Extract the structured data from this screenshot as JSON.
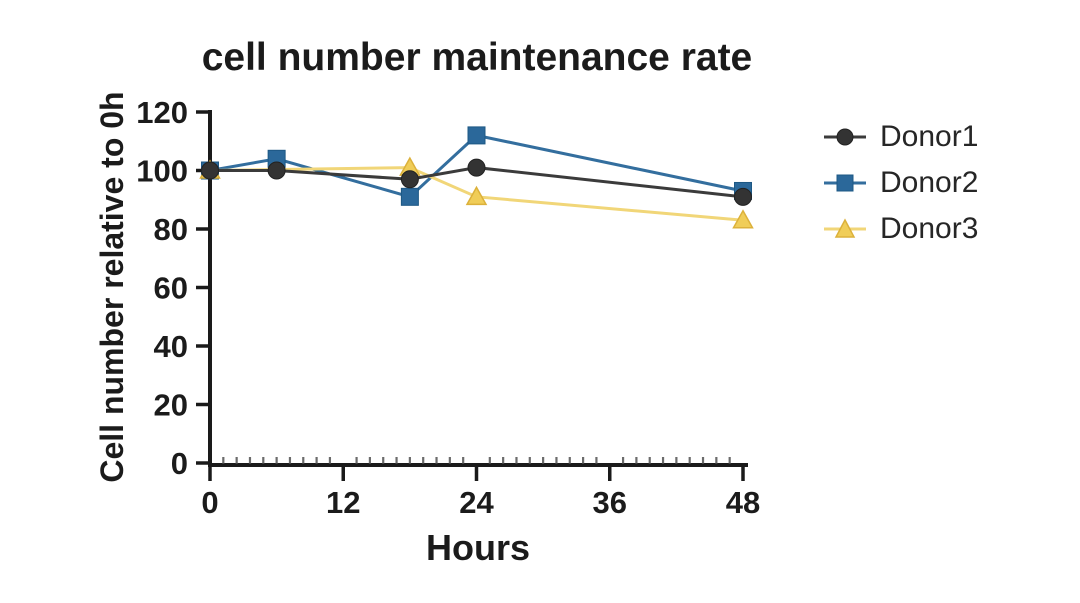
{
  "chart_data": {
    "type": "line",
    "title": "cell number maintenance rate",
    "xlabel": "Hours",
    "ylabel": "Cell number relative to 0h",
    "xlim": [
      0,
      48
    ],
    "ylim": [
      0,
      120
    ],
    "x_ticks": [
      0,
      12,
      24,
      36,
      48
    ],
    "y_ticks": [
      0,
      20,
      40,
      60,
      80,
      100,
      120
    ],
    "x_minor_tick_step": 1.2,
    "grid": false,
    "legend_position": "right-outside",
    "axis_color": "#1a1a1a",
    "text_color": "#1b1b1b",
    "minor_tick_color": "#6b6b6b",
    "series": [
      {
        "name": "Donor1",
        "marker": "circle",
        "color": "#333333",
        "marker_border": "#222222",
        "line_color": "#3b3b3b",
        "x": [
          0,
          6,
          18,
          24,
          48
        ],
        "values": [
          100,
          100,
          97,
          101,
          91
        ]
      },
      {
        "name": "Donor2",
        "marker": "square",
        "color": "#2b689a",
        "marker_border": "#1d5884",
        "line_color": "#336e9e",
        "x": [
          0,
          6,
          18,
          24,
          48
        ],
        "values": [
          100,
          104,
          91,
          112,
          93
        ]
      },
      {
        "name": "Donor3",
        "marker": "triangle",
        "color": "#f0cd58",
        "marker_border": "#dcb13b",
        "line_color": "#f1d678",
        "x": [
          0,
          18,
          24,
          48
        ],
        "values": [
          100,
          101,
          91,
          83
        ]
      }
    ],
    "draw_order": [
      1,
      2,
      0
    ]
  }
}
